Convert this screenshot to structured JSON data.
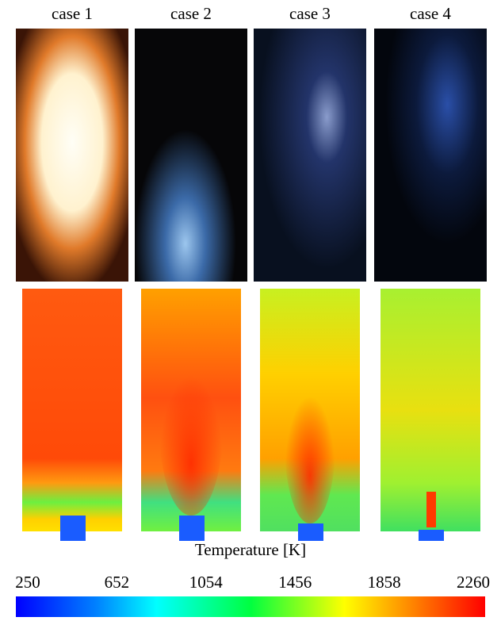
{
  "panels": {
    "cases": [
      "case 1",
      "case 2",
      "case 3",
      "case 4"
    ]
  },
  "colorbar": {
    "title": "Temperature [K]",
    "ticks": [
      250,
      652,
      1054,
      1456,
      1858,
      2260
    ]
  }
}
